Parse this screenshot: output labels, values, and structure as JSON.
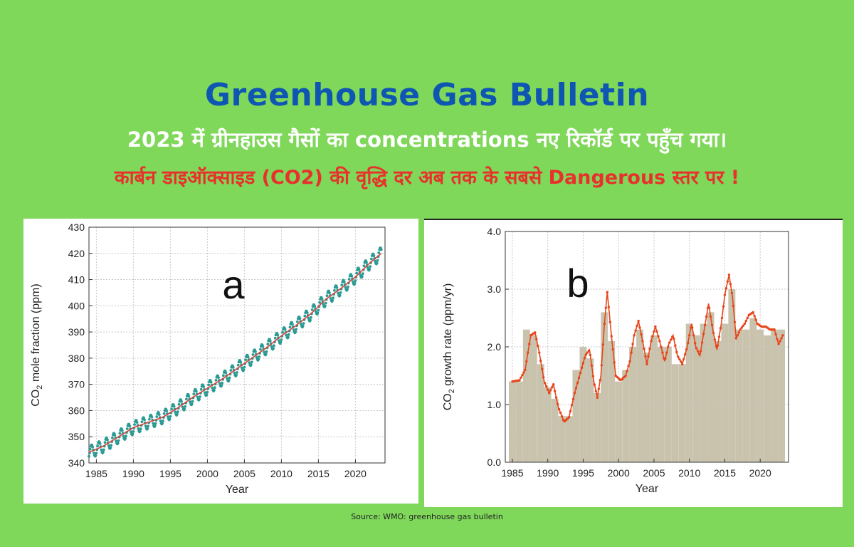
{
  "header": {
    "title": "Greenhouse Gas Bulletin",
    "subtitle_line1": "2023 में ग्रीनहाउस गैसों का concentrations नए रिकॉर्ड पर पहुँच गया।",
    "subtitle_line2": "कार्बन डाइऑक्साइड (CO2) की वृद्धि  दर अब तक के सबसे Dangerous स्तर पर !"
  },
  "source": "Source: WMO: greenhouse gas bulletin",
  "colors": {
    "background": "#7fd85a",
    "title": "#0f56b3",
    "subtitle_white": "#ffffff",
    "subtitle_red": "#e8312c",
    "trend_line": "#d9413c",
    "monthly_points": "#2a9a93",
    "growth_curve": "#e8451b",
    "bars": "#c9c3ad"
  },
  "chart_data": [
    {
      "type": "line",
      "panel_label": "a",
      "xlabel": "Year",
      "ylabel": "CO2 mole fraction (ppm)",
      "xlim": [
        1984,
        2024
      ],
      "ylim": [
        340,
        430
      ],
      "xticks": [
        1985,
        1990,
        1995,
        2000,
        2005,
        2010,
        2015,
        2020
      ],
      "yticks": [
        340,
        350,
        360,
        370,
        380,
        390,
        400,
        410,
        420,
        430
      ],
      "grid": true,
      "series": [
        {
          "style": "trend-line",
          "x": [
            1984,
            1986,
            1988,
            1990,
            1992,
            1994,
            1996,
            1998,
            2000,
            2002,
            2004,
            2006,
            2008,
            2010,
            2012,
            2014,
            2016,
            2018,
            2020,
            2022,
            2023.5
          ],
          "values": [
            344.0,
            346.5,
            350.0,
            353.5,
            355.5,
            357.5,
            361.0,
            365.0,
            368.5,
            372.0,
            376.0,
            380.0,
            384.0,
            388.5,
            392.5,
            397.0,
            402.5,
            406.5,
            411.0,
            416.5,
            420.0
          ]
        },
        {
          "style": "monthly-points",
          "seasonal_amplitude": 2.5
        }
      ]
    },
    {
      "type": "bar",
      "panel_label": "b",
      "xlabel": "Year",
      "ylabel": "CO2 growth rate (ppm/yr)",
      "xlim": [
        1984,
        2024
      ],
      "ylim": [
        0,
        4
      ],
      "xticks": [
        1985,
        1990,
        1995,
        2000,
        2005,
        2010,
        2015,
        2020
      ],
      "yticks": [
        0.0,
        1.0,
        2.0,
        3.0,
        4.0
      ],
      "yticklabels": [
        "0.0",
        "1.0",
        "2.0",
        "3.0",
        "4.0"
      ],
      "categories": [
        1985,
        1986,
        1987,
        1988,
        1989,
        1990,
        1991,
        1992,
        1993,
        1994,
        1995,
        1996,
        1997,
        1998,
        1999,
        2000,
        2001,
        2002,
        2003,
        2004,
        2005,
        2006,
        2007,
        2008,
        2009,
        2010,
        2011,
        2012,
        2013,
        2014,
        2015,
        2016,
        2017,
        2018,
        2019,
        2020,
        2021,
        2022,
        2023
      ],
      "values": [
        1.4,
        1.4,
        2.3,
        2.2,
        1.7,
        1.3,
        1.1,
        0.8,
        0.8,
        1.6,
        2.0,
        1.8,
        1.2,
        2.6,
        2.1,
        1.4,
        1.6,
        2.0,
        2.3,
        1.9,
        2.2,
        2.0,
        2.0,
        1.7,
        1.7,
        2.4,
        2.2,
        2.4,
        2.6,
        2.1,
        2.4,
        3.0,
        2.3,
        2.3,
        2.5,
        2.3,
        2.2,
        2.3,
        2.3
      ],
      "grid": true,
      "series": [
        {
          "style": "growth-curve",
          "x": [
            1985,
            1986,
            1986.8,
            1987.6,
            1988.2,
            1988.8,
            1989.5,
            1990.2,
            1990.8,
            1991.5,
            1992.3,
            1993.0,
            1993.8,
            1994.6,
            1995.3,
            1995.9,
            1996.5,
            1997.0,
            1997.5,
            1998.0,
            1998.4,
            1998.9,
            1999.6,
            2000.3,
            2001.0,
            2001.6,
            2002.2,
            2002.8,
            2003.4,
            2004.0,
            2004.6,
            2005.2,
            2005.8,
            2006.5,
            2007.1,
            2007.7,
            2008.3,
            2009.0,
            2009.7,
            2010.3,
            2010.9,
            2011.5,
            2012.1,
            2012.7,
            2013.3,
            2013.9,
            2014.5,
            2015.0,
            2015.6,
            2016.1,
            2016.6,
            2017.2,
            2017.8,
            2018.4,
            2019.0,
            2019.6,
            2020.2,
            2020.8,
            2021.4,
            2022.0,
            2022.6,
            2023.2
          ],
          "values": [
            1.4,
            1.42,
            1.6,
            2.2,
            2.25,
            1.9,
            1.4,
            1.2,
            1.35,
            0.95,
            0.7,
            0.78,
            1.2,
            1.55,
            1.85,
            1.95,
            1.4,
            1.12,
            1.5,
            2.4,
            2.95,
            2.3,
            1.5,
            1.42,
            1.5,
            1.75,
            2.2,
            2.45,
            2.1,
            1.7,
            2.1,
            2.35,
            2.1,
            1.75,
            2.05,
            2.2,
            1.85,
            1.7,
            2.0,
            2.4,
            2.0,
            1.85,
            2.3,
            2.75,
            2.3,
            1.95,
            2.4,
            2.9,
            3.25,
            2.85,
            2.15,
            2.3,
            2.4,
            2.55,
            2.6,
            2.4,
            2.35,
            2.35,
            2.3,
            2.3,
            2.05,
            2.2
          ]
        }
      ]
    }
  ],
  "axis_labels": {
    "a_ylabel_prefix": "CO",
    "a_ylabel_sub": "2",
    "a_ylabel_suffix": " mole fraction (ppm)",
    "b_ylabel_prefix": "CO",
    "b_ylabel_sub": "2",
    "b_ylabel_suffix": " growth rate (ppm/yr)"
  }
}
